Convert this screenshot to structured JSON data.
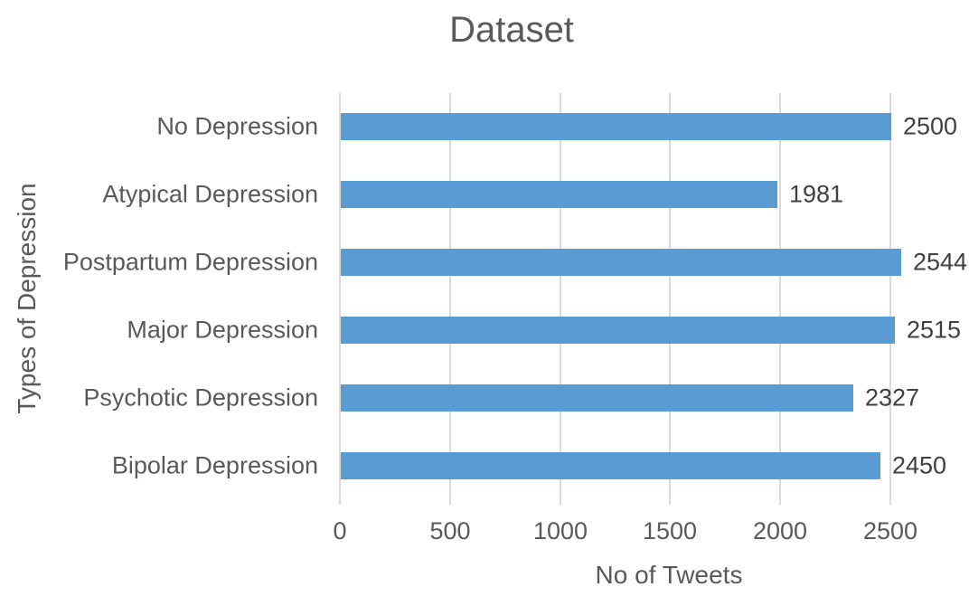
{
  "chart_data": {
    "type": "bar",
    "orientation": "horizontal",
    "title": "Dataset",
    "xlabel": "No of Tweets",
    "ylabel": "Types of Depression",
    "categories": [
      "No Depression",
      "Atypical Depression",
      "Postpartum Depression",
      "Major Depression",
      "Psychotic Depression",
      "Bipolar Depression"
    ],
    "values": [
      2500,
      1981,
      2544,
      2515,
      2327,
      2450
    ],
    "data_labels": [
      "2500",
      "1981",
      "2544",
      "2515",
      "2327",
      "2450"
    ],
    "x_ticks": [
      0,
      500,
      1000,
      1500,
      2000,
      2500
    ],
    "xlim": [
      0,
      2500
    ],
    "grid": true,
    "legend": false,
    "colors": {
      "bar": "#5B9BD5",
      "gridline": "#D9D9D9",
      "title_text": "#595959",
      "axis_text": "#595959",
      "data_label_text": "#404040",
      "background": "#FFFFFF"
    }
  }
}
